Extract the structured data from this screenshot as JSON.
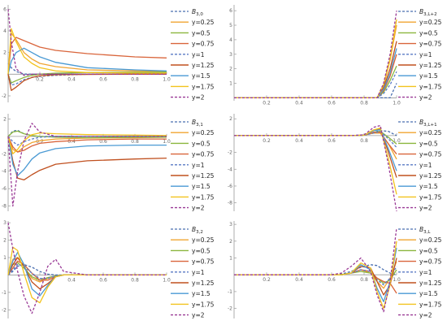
{
  "legend_entries": [
    "y=0.25",
    "y=0.5",
    "y=0.75",
    "y=1",
    "y=1.25",
    "y=1.5",
    "y=1.75",
    "y=2"
  ],
  "colors": {
    "basis": "#4a6fb0",
    "y=0.25": "#f0a430",
    "y=0.5": "#8bb63e",
    "y=0.75": "#d9653b",
    "y=1": "#5a7ac4",
    "y=1.25": "#c0501f",
    "y=1.5": "#4a9ad4",
    "y=1.75": "#f2c31d",
    "y=2": "#9a3a96"
  },
  "chart_data": [
    {
      "type": "line",
      "legend_title": "B3,0",
      "xlim": [
        0,
        1
      ],
      "ylim": [
        -2.6,
        6.4
      ],
      "xticks": [
        "0.2",
        "0.4",
        "0.6",
        "0.8",
        "1.0"
      ],
      "yticks": [
        -2,
        2,
        4,
        6
      ],
      "x": [
        0,
        0.02,
        0.05,
        0.1,
        0.15,
        0.2,
        0.3,
        0.5,
        0.8,
        1.0
      ],
      "series": [
        {
          "name": "B3,0",
          "dashed": true,
          "values": [
            1,
            0.6,
            0.25,
            0.02,
            0,
            0,
            0,
            0,
            0,
            0
          ]
        },
        {
          "name": "y=0.25",
          "values": [
            0,
            3.8,
            3.2,
            2.0,
            1.4,
            1.0,
            0.7,
            0.4,
            0.3,
            0.25
          ]
        },
        {
          "name": "y=0.5",
          "values": [
            0,
            -0.8,
            -0.6,
            -0.3,
            -0.1,
            0.0,
            0.1,
            0.15,
            0.18,
            0.2
          ]
        },
        {
          "name": "y=0.75",
          "values": [
            0,
            2.8,
            3.4,
            3.1,
            2.8,
            2.5,
            2.2,
            1.9,
            1.6,
            1.5
          ]
        },
        {
          "name": "y=1",
          "dashed": true,
          "values": [
            0,
            -1.0,
            -0.9,
            -0.5,
            -0.3,
            -0.2,
            -0.1,
            0,
            0,
            0
          ]
        },
        {
          "name": "y=1.25",
          "values": [
            0,
            -1.5,
            -1.2,
            -0.6,
            -0.3,
            -0.15,
            -0.05,
            -0.02,
            0,
            0
          ]
        },
        {
          "name": "y=1.5",
          "values": [
            0,
            1.2,
            2.0,
            2.4,
            2.0,
            1.6,
            1.1,
            0.6,
            0.4,
            0.3
          ]
        },
        {
          "name": "y=1.75",
          "values": [
            0,
            4.2,
            3.0,
            1.6,
            1.0,
            0.6,
            0.3,
            0.15,
            0.1,
            0.1
          ]
        },
        {
          "name": "y=2",
          "dashed": true,
          "values": [
            6,
            3,
            0.5,
            -0.1,
            0,
            0,
            0,
            0,
            0,
            0
          ]
        }
      ]
    },
    {
      "type": "line",
      "legend_title": "B3,L+2",
      "xlim": [
        0,
        1
      ],
      "ylim": [
        -0.2,
        6.4
      ],
      "xticks": [
        "0.2",
        "0.4",
        "0.6",
        "0.8",
        "1.0"
      ],
      "yticks": [
        1,
        2,
        3,
        4,
        5,
        6
      ],
      "x": [
        0,
        0.2,
        0.4,
        0.6,
        0.8,
        0.88,
        0.92,
        0.96,
        1.0
      ],
      "series": [
        {
          "name": "B3,L+2",
          "dashed": true,
          "values": [
            0,
            0,
            0,
            0,
            0,
            0,
            0,
            0,
            1
          ]
        },
        {
          "name": "y=0.25",
          "values": [
            0,
            0,
            0,
            0,
            0,
            0,
            0.8,
            2.6,
            5.0
          ]
        },
        {
          "name": "y=0.5",
          "values": [
            0,
            0,
            0,
            0,
            0,
            0,
            0.4,
            1.2,
            2.2
          ]
        },
        {
          "name": "y=0.75",
          "values": [
            0,
            0,
            0,
            0,
            0,
            0,
            0.5,
            1.5,
            3.0
          ]
        },
        {
          "name": "y=1",
          "dashed": true,
          "values": [
            0,
            0,
            0,
            0,
            0,
            0,
            0.3,
            0.9,
            1.8
          ]
        },
        {
          "name": "y=1.25",
          "values": [
            0,
            0,
            0,
            0,
            0,
            0,
            0.7,
            2.0,
            3.9
          ]
        },
        {
          "name": "y=1.5",
          "values": [
            0,
            0,
            0,
            0,
            0,
            0,
            0.6,
            1.7,
            3.4
          ]
        },
        {
          "name": "y=1.75",
          "values": [
            0,
            0,
            0,
            0,
            0,
            0,
            0.9,
            2.7,
            5.4
          ]
        },
        {
          "name": "y=2",
          "dashed": true,
          "values": [
            0,
            0,
            0,
            0,
            0,
            0,
            1.0,
            3.0,
            6.0
          ]
        }
      ]
    },
    {
      "type": "line",
      "legend_title": "B3,1",
      "xlim": [
        0,
        1
      ],
      "ylim": [
        -8.6,
        2.6
      ],
      "xticks": [
        "0.2",
        "0.4",
        "0.6",
        "0.8",
        "1.0"
      ],
      "yticks": [
        -8,
        -6,
        -4,
        -2,
        2
      ],
      "x": [
        0,
        0.03,
        0.06,
        0.1,
        0.15,
        0.2,
        0.3,
        0.5,
        0.8,
        1.0
      ],
      "series": [
        {
          "name": "B3,1",
          "dashed": true,
          "values": [
            0,
            0.6,
            0.7,
            0.3,
            0.05,
            0,
            0,
            0,
            0,
            0
          ]
        },
        {
          "name": "y=0.25",
          "values": [
            0,
            -1.5,
            -1.8,
            -1.2,
            -0.7,
            -0.5,
            -0.3,
            -0.2,
            -0.15,
            -0.1
          ]
        },
        {
          "name": "y=0.5",
          "values": [
            0,
            0.5,
            0.6,
            0.3,
            0.1,
            0.0,
            -0.1,
            -0.15,
            -0.1,
            -0.1
          ]
        },
        {
          "name": "y=0.75",
          "values": [
            0,
            -1.2,
            -1.8,
            -1.6,
            -1.1,
            -0.8,
            -0.6,
            -0.4,
            -0.3,
            -0.3
          ]
        },
        {
          "name": "y=1",
          "dashed": true,
          "values": [
            0,
            -0.6,
            -1.0,
            -0.6,
            -0.3,
            -0.1,
            0,
            0,
            0,
            0
          ]
        },
        {
          "name": "y=1.25",
          "values": [
            0,
            -2.8,
            -4.8,
            -5.0,
            -4.4,
            -3.9,
            -3.2,
            -2.8,
            -2.6,
            -2.5
          ]
        },
        {
          "name": "y=1.5",
          "values": [
            0,
            -3.2,
            -4.5,
            -3.8,
            -2.6,
            -1.9,
            -1.4,
            -1.1,
            -1.0,
            -1.0
          ]
        },
        {
          "name": "y=1.75",
          "values": [
            0,
            -2.0,
            -1.5,
            -0.5,
            0.2,
            0.4,
            0.3,
            0.2,
            0.15,
            0.1
          ]
        },
        {
          "name": "y=2",
          "dashed": true,
          "values": [
            0,
            -8.0,
            -4.0,
            -0.5,
            1.5,
            0.5,
            0,
            0,
            0,
            0
          ]
        }
      ]
    },
    {
      "type": "line",
      "legend_title": "B3,L+1",
      "xlim": [
        0,
        1
      ],
      "ylim": [
        -9.0,
        2.6
      ],
      "xticks": [
        "0.2",
        "0.4",
        "0.6",
        "0.8",
        "1.0"
      ],
      "yticks": [
        -8,
        -6,
        -4,
        -2,
        2
      ],
      "x": [
        0,
        0.2,
        0.4,
        0.6,
        0.72,
        0.8,
        0.86,
        0.9,
        0.95,
        1.0
      ],
      "series": [
        {
          "name": "B3,L+1",
          "dashed": true,
          "values": [
            0,
            0,
            0,
            0,
            0,
            0.1,
            0.4,
            0.6,
            0.5,
            0
          ]
        },
        {
          "name": "y=0.25",
          "values": [
            0,
            0,
            0,
            0,
            0,
            0.05,
            0.3,
            0.3,
            -1.0,
            -2.8
          ]
        },
        {
          "name": "y=0.5",
          "values": [
            0,
            0,
            0,
            0,
            0,
            0.05,
            0.4,
            0.5,
            -0.2,
            -1.0
          ]
        },
        {
          "name": "y=0.75",
          "values": [
            0,
            0,
            0,
            0,
            0,
            0.05,
            0.4,
            0.4,
            -1.0,
            -2.2
          ]
        },
        {
          "name": "y=1",
          "dashed": true,
          "values": [
            0,
            0,
            0,
            0,
            0,
            0.05,
            0.3,
            0.5,
            -0.4,
            -1.4
          ]
        },
        {
          "name": "y=1.25",
          "values": [
            0,
            0,
            0,
            0,
            0,
            0.05,
            0.6,
            0.8,
            -2.0,
            -5.0
          ]
        },
        {
          "name": "y=1.5",
          "values": [
            0,
            0,
            0,
            0,
            0,
            0.05,
            0.6,
            0.7,
            -1.6,
            -4.2
          ]
        },
        {
          "name": "y=1.75",
          "values": [
            0,
            0,
            0,
            0,
            0,
            0.05,
            0.7,
            0.9,
            -2.8,
            -7.0
          ]
        },
        {
          "name": "y=2",
          "dashed": true,
          "values": [
            0,
            0,
            0,
            0,
            0,
            0.1,
            1.0,
            1.2,
            -3.5,
            -9.0
          ]
        }
      ]
    },
    {
      "type": "line",
      "legend_title": "B3,2",
      "xlim": [
        0,
        1
      ],
      "ylim": [
        -2.5,
        3.1
      ],
      "xticks": [
        "0.2",
        "0.4",
        "0.6",
        "0.8",
        "1.0"
      ],
      "yticks": [
        -2,
        -1,
        1,
        2,
        3
      ],
      "x": [
        0,
        0.03,
        0.06,
        0.1,
        0.15,
        0.2,
        0.25,
        0.3,
        0.35,
        0.5,
        0.8,
        1.0
      ],
      "series": [
        {
          "name": "B3,2",
          "dashed": true,
          "values": [
            0,
            0.2,
            0.5,
            0.6,
            0.45,
            0.2,
            0.05,
            0,
            0,
            0,
            0,
            0
          ]
        },
        {
          "name": "y=0.25",
          "values": [
            0,
            0.9,
            1.0,
            0.5,
            -0.2,
            -0.4,
            -0.2,
            -0.05,
            0,
            0,
            0,
            0
          ]
        },
        {
          "name": "y=0.5",
          "values": [
            0,
            0.6,
            0.7,
            0.4,
            -0.1,
            -0.3,
            -0.15,
            -0.05,
            0,
            0,
            0,
            0
          ]
        },
        {
          "name": "y=0.75",
          "values": [
            0,
            0.4,
            0.8,
            0.6,
            0.1,
            -0.3,
            -0.3,
            -0.1,
            0,
            0,
            0,
            0
          ]
        },
        {
          "name": "y=1",
          "dashed": true,
          "values": [
            0,
            0.3,
            0.6,
            0.5,
            0.1,
            -0.2,
            -0.2,
            -0.05,
            0,
            0,
            0,
            0
          ]
        },
        {
          "name": "y=1.25",
          "values": [
            0,
            0.6,
            1.0,
            0.5,
            -0.4,
            -0.8,
            -0.5,
            -0.1,
            0,
            0,
            0,
            0
          ]
        },
        {
          "name": "y=1.5",
          "values": [
            0,
            0.8,
            1.3,
            0.6,
            -0.8,
            -1.2,
            -0.6,
            -0.1,
            0,
            0,
            0,
            0
          ]
        },
        {
          "name": "y=1.75",
          "values": [
            0,
            1.6,
            1.4,
            0.1,
            -1.3,
            -1.6,
            -0.7,
            -0.1,
            0,
            0,
            0,
            0
          ]
        },
        {
          "name": "y=2",
          "dashed": true,
          "values": [
            3.0,
            1.5,
            0.2,
            -1.2,
            -2.2,
            -1.0,
            0.5,
            0.9,
            0.2,
            0,
            0,
            0
          ]
        }
      ]
    },
    {
      "type": "line",
      "legend_title": "B3,L",
      "xlim": [
        0,
        1
      ],
      "ylim": [
        -2.6,
        3.2
      ],
      "xticks": [
        "0.2",
        "0.4",
        "0.6",
        "0.8",
        "1.0"
      ],
      "yticks": [
        -2,
        -1,
        1,
        2,
        3
      ],
      "x": [
        0,
        0.2,
        0.4,
        0.6,
        0.66,
        0.72,
        0.78,
        0.84,
        0.88,
        0.92,
        0.96,
        1.0
      ],
      "series": [
        {
          "name": "B3,L",
          "dashed": true,
          "values": [
            0,
            0,
            0,
            0,
            0.05,
            0.2,
            0.45,
            0.6,
            0.55,
            0.3,
            0.1,
            0
          ]
        },
        {
          "name": "y=0.25",
          "values": [
            0,
            0,
            0,
            0,
            0,
            0.1,
            0.3,
            0.1,
            -0.4,
            -0.8,
            -0.2,
            0.8
          ]
        },
        {
          "name": "y=0.5",
          "values": [
            0,
            0,
            0,
            0,
            0,
            0.1,
            0.2,
            0.1,
            -0.2,
            -0.5,
            -0.3,
            0.3
          ]
        },
        {
          "name": "y=0.75",
          "values": [
            0,
            0,
            0,
            0,
            0,
            0.1,
            0.3,
            0.2,
            -0.2,
            -0.4,
            -0.5,
            -1.1
          ]
        },
        {
          "name": "y=1",
          "dashed": true,
          "values": [
            0,
            0,
            0,
            0,
            0,
            0.1,
            0.3,
            0.2,
            -0.3,
            -0.6,
            -0.2,
            0.5
          ]
        },
        {
          "name": "y=1.25",
          "values": [
            0,
            0,
            0,
            0,
            0,
            0.1,
            0.5,
            0.4,
            -0.4,
            -1.2,
            -0.6,
            1.0
          ]
        },
        {
          "name": "y=1.5",
          "values": [
            0,
            0,
            0,
            0,
            0,
            0.1,
            0.6,
            0.3,
            -0.8,
            -1.6,
            -0.4,
            1.6
          ]
        },
        {
          "name": "y=1.75",
          "values": [
            0,
            0,
            0,
            0,
            0,
            0.1,
            0.7,
            0.4,
            -1.0,
            -2.0,
            -0.6,
            2.0
          ]
        },
        {
          "name": "y=2",
          "dashed": true,
          "values": [
            0,
            0,
            0,
            0,
            0.1,
            0.5,
            1.0,
            0.2,
            -1.2,
            -2.2,
            -0.4,
            2.8
          ]
        }
      ]
    }
  ]
}
